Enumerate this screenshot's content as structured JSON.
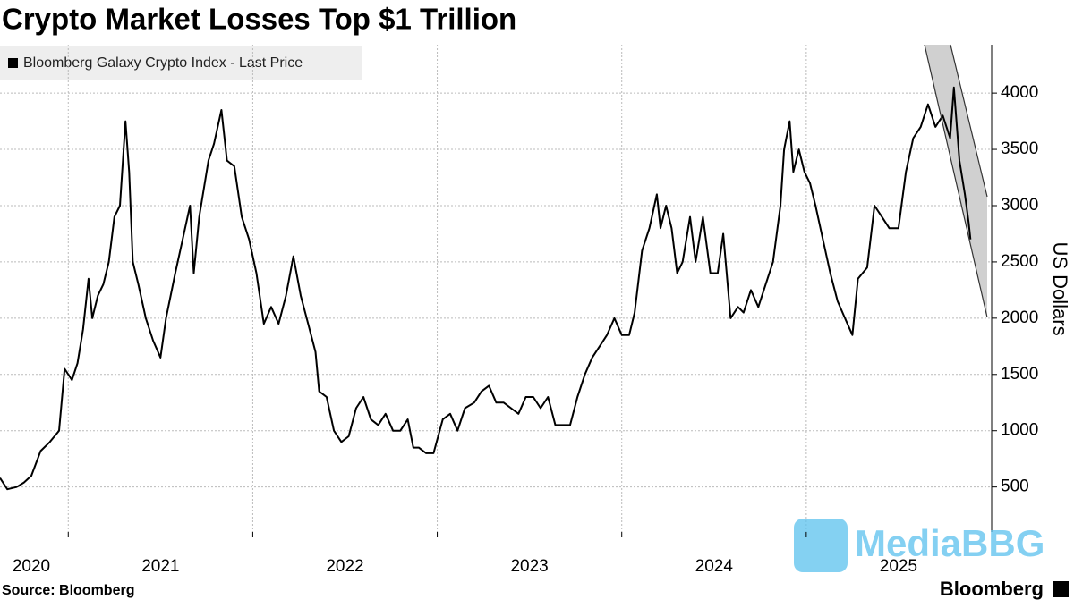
{
  "chart_data": {
    "type": "line",
    "title": "Crypto Market Losses Top $1 Trillion",
    "source": "Source: Bloomberg",
    "brand": "Bloomberg",
    "watermark": "MediaBBG",
    "y_axis_label": "US Dollars",
    "grid": true,
    "legend": "top-left",
    "xlim": [
      2020.63,
      2026.0
    ],
    "xticks": [
      2020,
      2021,
      2022,
      2023,
      2024,
      2025
    ],
    "ylim": [
      100,
      4430
    ],
    "yticks": [
      500,
      1000,
      1500,
      2000,
      2500,
      3000,
      3500,
      4000
    ],
    "x": [
      2020.63,
      2020.67,
      2020.72,
      2020.76,
      2020.8,
      2020.85,
      2020.9,
      2020.95,
      2020.98,
      2021.02,
      2021.05,
      2021.08,
      2021.11,
      2021.13,
      2021.16,
      2021.19,
      2021.22,
      2021.25,
      2021.28,
      2021.31,
      2021.33,
      2021.35,
      2021.38,
      2021.42,
      2021.46,
      2021.5,
      2021.53,
      2021.58,
      2021.62,
      2021.66,
      2021.68,
      2021.71,
      2021.76,
      2021.79,
      2021.83,
      2021.86,
      2021.9,
      2021.94,
      2021.98,
      2022.02,
      2022.06,
      2022.1,
      2022.14,
      2022.18,
      2022.22,
      2022.26,
      2022.3,
      2022.34,
      2022.36,
      2022.4,
      2022.44,
      2022.48,
      2022.52,
      2022.56,
      2022.6,
      2022.64,
      2022.68,
      2022.72,
      2022.76,
      2022.8,
      2022.84,
      2022.87,
      2022.9,
      2022.94,
      2022.98,
      2023.03,
      2023.07,
      2023.11,
      2023.15,
      2023.2,
      2023.24,
      2023.28,
      2023.32,
      2023.36,
      2023.4,
      2023.44,
      2023.48,
      2023.52,
      2023.56,
      2023.6,
      2023.64,
      2023.68,
      2023.72,
      2023.76,
      2023.8,
      2023.84,
      2023.88,
      2023.92,
      2023.96,
      2024.0,
      2024.04,
      2024.07,
      2024.11,
      2024.15,
      2024.19,
      2024.21,
      2024.24,
      2024.27,
      2024.3,
      2024.33,
      2024.37,
      2024.4,
      2024.44,
      2024.48,
      2024.52,
      2024.55,
      2024.59,
      2024.63,
      2024.66,
      2024.7,
      2024.74,
      2024.78,
      2024.82,
      2024.86,
      2024.88,
      2024.91,
      2024.93,
      2024.96,
      2024.99,
      2025.02,
      2025.05,
      2025.09,
      2025.13,
      2025.17,
      2025.21,
      2025.25,
      2025.28,
      2025.33,
      2025.37,
      2025.41,
      2025.45,
      2025.5,
      2025.54,
      2025.58,
      2025.62,
      2025.66,
      2025.7,
      2025.74,
      2025.78,
      2025.8,
      2025.83,
      2025.86,
      2025.88,
      2025.89
    ],
    "series": [
      {
        "name": "Bloomberg Galaxy Crypto Index - Last Price",
        "color": "#000000",
        "values": [
          580,
          480,
          500,
          540,
          600,
          820,
          900,
          1000,
          1550,
          1450,
          1600,
          1900,
          2350,
          2000,
          2200,
          2300,
          2500,
          2900,
          3000,
          3750,
          3300,
          2500,
          2300,
          2000,
          1800,
          1650,
          2000,
          2400,
          2700,
          3000,
          2400,
          2900,
          3400,
          3550,
          3850,
          3400,
          3350,
          2900,
          2700,
          2400,
          1950,
          2100,
          1950,
          2200,
          2550,
          2200,
          1950,
          1700,
          1350,
          1300,
          1000,
          900,
          950,
          1200,
          1300,
          1100,
          1050,
          1150,
          1000,
          1000,
          1100,
          850,
          850,
          800,
          800,
          1100,
          1150,
          1000,
          1200,
          1250,
          1350,
          1400,
          1250,
          1250,
          1200,
          1150,
          1300,
          1300,
          1200,
          1300,
          1050,
          1050,
          1050,
          1300,
          1500,
          1650,
          1750,
          1850,
          2000,
          1850,
          1850,
          2050,
          2600,
          2800,
          3100,
          2800,
          3000,
          2800,
          2400,
          2500,
          2900,
          2500,
          2900,
          2400,
          2400,
          2750,
          2000,
          2100,
          2050,
          2250,
          2100,
          2300,
          2500,
          3000,
          3500,
          3750,
          3300,
          3500,
          3300,
          3200,
          3000,
          2700,
          2400,
          2150,
          2000,
          1850,
          2350,
          2450,
          3000,
          2900,
          2800,
          2800,
          3300,
          3600,
          3700,
          3900,
          3700,
          3800,
          3600,
          4050,
          3400,
          3100,
          2850,
          2700
        ]
      }
    ]
  }
}
